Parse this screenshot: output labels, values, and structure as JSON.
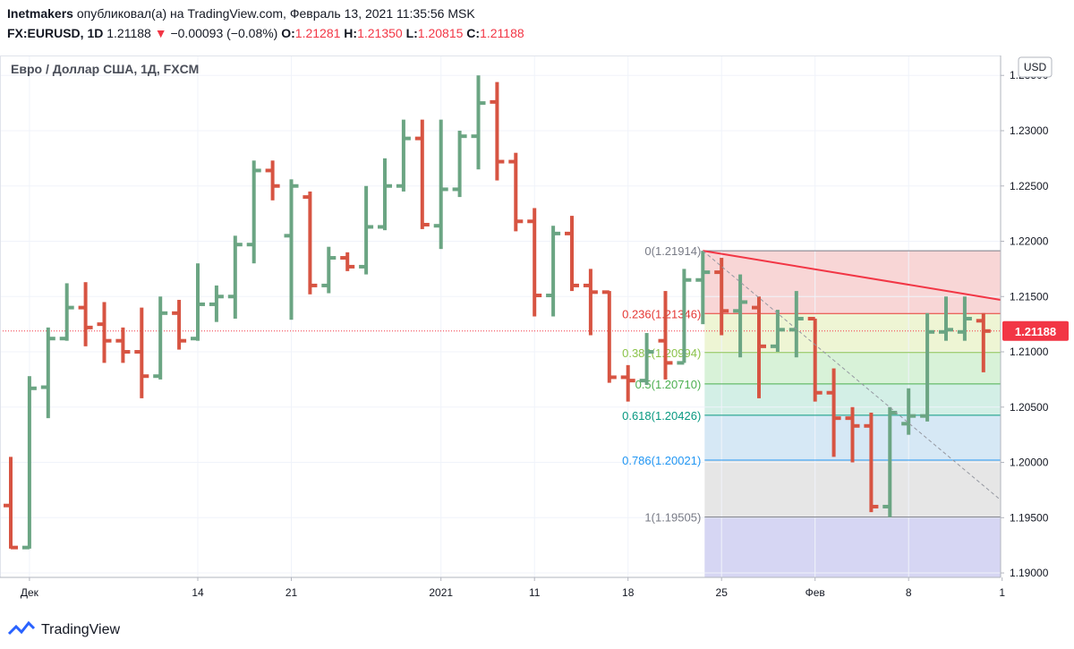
{
  "header": {
    "author": "Inetmakers",
    "published": "опубликовал(а) на TradingView.com, Февраль 13, 2021 11:35:56 MSK",
    "symbol": "FX:EURUSD, 1D",
    "last": "1.21188",
    "arrow": "▼",
    "change": "−0.00093 (−0.08%)",
    "o_label": "O:",
    "o": "1.21281",
    "h_label": "H:",
    "h": "1.21350",
    "l_label": "L:",
    "l": "1.20815",
    "c_label": "C:",
    "c": "1.21188"
  },
  "footer": {
    "brand": "TradingView"
  },
  "chart_data": {
    "type": "ohlc",
    "title": "Евро / Доллар США, 1Д, FXCM",
    "currency": "USD",
    "categories": [
      null,
      "Дек",
      null,
      null,
      null,
      null,
      null,
      null,
      null,
      null,
      "14",
      null,
      null,
      null,
      null,
      "21",
      null,
      null,
      null,
      null,
      null,
      null,
      null,
      "2021",
      null,
      null,
      null,
      null,
      "11",
      null,
      null,
      null,
      null,
      "18",
      null,
      null,
      null,
      null,
      "25",
      null,
      null,
      null,
      null,
      "Фев",
      null,
      null,
      null,
      null,
      "8",
      null,
      null,
      null,
      null,
      "1"
    ],
    "open": [
      1.1961,
      1.1923,
      1.2068,
      1.2112,
      1.214,
      1.2125,
      1.211,
      1.21,
      1.2078,
      1.2135,
      1.2112,
      1.2143,
      1.215,
      1.2197,
      1.2264,
      1.2205,
      1.224,
      1.216,
      1.2185,
      1.2177,
      1.2213,
      1.225,
      1.2293,
      1.2214,
      1.2247,
      1.2295,
      1.2326,
      1.2272,
      1.2218,
      1.2151,
      1.2207,
      1.216,
      1.2154,
      1.2077,
      1.2074,
      1.211,
      1.209,
      1.2165,
      1.2172,
      1.2137,
      1.214,
      1.2105,
      1.212,
      1.213,
      1.2063,
      1.204,
      1.2033,
      1.196,
      1.2035,
      1.2042,
      1.2118,
      1.2118,
      1.21281,
      null
    ],
    "high": [
      1.2005,
      1.2078,
      1.2122,
      1.2162,
      1.2163,
      1.2145,
      1.2122,
      1.214,
      1.215,
      1.2147,
      1.218,
      1.216,
      1.2205,
      1.2273,
      1.2273,
      1.2256,
      1.2245,
      1.2195,
      1.219,
      1.225,
      1.2275,
      1.231,
      1.231,
      1.231,
      1.23,
      1.235,
      1.2344,
      1.228,
      1.223,
      1.2214,
      1.2223,
      1.2175,
      1.2155,
      1.2088,
      1.2117,
      1.2155,
      1.2175,
      1.21914,
      1.2185,
      1.217,
      1.215,
      1.2138,
      1.2155,
      1.213,
      1.2085,
      1.205,
      1.2045,
      1.205,
      1.2067,
      1.2135,
      1.215,
      1.215,
      1.2135,
      null
    ],
    "low": [
      1.1922,
      1.1922,
      1.204,
      1.211,
      1.2105,
      1.209,
      1.209,
      1.2058,
      1.2075,
      1.2102,
      1.211,
      1.2127,
      1.213,
      1.218,
      1.2237,
      1.2129,
      1.2152,
      1.2153,
      1.2173,
      1.217,
      1.221,
      1.2245,
      1.2211,
      1.2193,
      1.224,
      1.2265,
      1.2255,
      1.2209,
      1.2132,
      1.2132,
      1.2155,
      1.2115,
      1.2072,
      1.2055,
      1.207,
      1.2075,
      1.209,
      1.2125,
      1.2115,
      1.2095,
      1.2058,
      1.21,
      1.2095,
      1.2055,
      1.2005,
      1.2,
      1.1955,
      1.19505,
      1.2025,
      1.2037,
      1.211,
      1.211,
      1.20815,
      null
    ],
    "close": [
      1.1923,
      1.2067,
      1.2112,
      1.214,
      1.2122,
      1.211,
      1.21,
      1.2078,
      1.2135,
      1.211,
      1.2143,
      1.215,
      1.2197,
      1.2264,
      1.225,
      1.225,
      1.216,
      1.2185,
      1.2177,
      1.2213,
      1.225,
      1.2293,
      1.2215,
      1.2247,
      1.2295,
      1.2325,
      1.2272,
      1.2218,
      1.2151,
      1.2207,
      1.216,
      1.2154,
      1.2077,
      1.2074,
      1.21,
      1.209,
      1.2165,
      1.2172,
      1.2137,
      1.2145,
      1.2105,
      1.212,
      1.213,
      1.2063,
      1.204,
      1.2033,
      1.196,
      1.2045,
      1.2042,
      1.2118,
      1.212,
      1.213,
      1.21188,
      null
    ],
    "up_color": "#6ba583",
    "down_color": "#d75442",
    "ylim": [
      1.1896,
      1.2368
    ],
    "yticks": [
      {
        "value": 1.19,
        "label": "1.19000"
      },
      {
        "value": 1.195,
        "label": "1.19500"
      },
      {
        "value": 1.2,
        "label": "1.20000"
      },
      {
        "value": 1.205,
        "label": "1.20500"
      },
      {
        "value": 1.21,
        "label": "1.21000"
      },
      {
        "value": 1.215,
        "label": "1.21500"
      },
      {
        "value": 1.22,
        "label": "1.22000"
      },
      {
        "value": 1.225,
        "label": "1.22500"
      },
      {
        "value": 1.23,
        "label": "1.23000"
      },
      {
        "value": 1.235,
        "label": "1.23500"
      }
    ],
    "grid": true,
    "fib": {
      "levels": [
        {
          "value": 1.21914,
          "label": "0(1.21914)",
          "color": "#787b86"
        },
        {
          "value": 1.21346,
          "label": "0.236(1.21346)",
          "color": "#e53935"
        },
        {
          "value": 1.20994,
          "label": "0.382(1.20994)",
          "color": "#8bc34a"
        },
        {
          "value": 1.2071,
          "label": "0.5(1.20710)",
          "color": "#4caf50"
        },
        {
          "value": 1.20426,
          "label": "0.618(1.20426)",
          "color": "#089981"
        },
        {
          "value": 1.20021,
          "label": "0.786(1.20021)",
          "color": "#2196f3"
        },
        {
          "value": 1.19505,
          "label": "1(1.19505)",
          "color": "#787b86"
        }
      ],
      "fills": [
        "#f8d6d6",
        "#eef5d4",
        "#d8f2d8",
        "#d3efe6",
        "#d6e8f5",
        "#e6e6e6",
        "#d6d6f3"
      ]
    },
    "trend_lines": [
      {
        "to": 1.2147,
        "color": "#f23645",
        "dash": false
      },
      {
        "to": 1.1966,
        "color": "#9598a1",
        "dash": true
      }
    ],
    "last_color": "#f23645"
  }
}
